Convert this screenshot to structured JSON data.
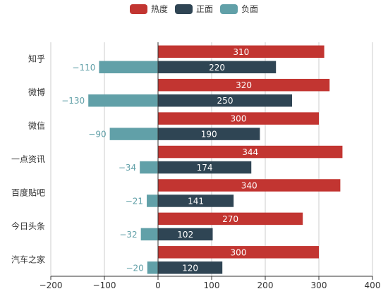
{
  "colors": {
    "heat": "#c23531",
    "positive": "#2f4554",
    "negative": "#61a0a8",
    "axis": "#333333",
    "grid": "#cccccc"
  },
  "chart_data": {
    "type": "bar",
    "orientation": "horizontal",
    "categories": [
      "知乎",
      "微博",
      "微信",
      "一点资讯",
      "百度贴吧",
      "今日头条",
      "汽车之家"
    ],
    "series": [
      {
        "name": "热度",
        "values": [
          310,
          320,
          300,
          344,
          340,
          270,
          300
        ],
        "label_position": "inside",
        "label_color": "#ffffff"
      },
      {
        "name": "正面",
        "values": [
          220,
          250,
          190,
          174,
          141,
          102,
          120
        ],
        "label_position": "inside",
        "label_color": "#ffffff"
      },
      {
        "name": "负面",
        "values": [
          -110,
          -130,
          -90,
          -34,
          -21,
          -32,
          -20
        ],
        "label_position": "left",
        "label_color": "#61a0a8"
      }
    ],
    "xlim": [
      -200,
      400
    ],
    "xticks": [
      -200,
      -100,
      0,
      100,
      200,
      300,
      400
    ],
    "xtick_labels": [
      "−200",
      "−100",
      "0",
      "100",
      "200",
      "300",
      "400"
    ],
    "grid": true,
    "legend": "top-center"
  }
}
